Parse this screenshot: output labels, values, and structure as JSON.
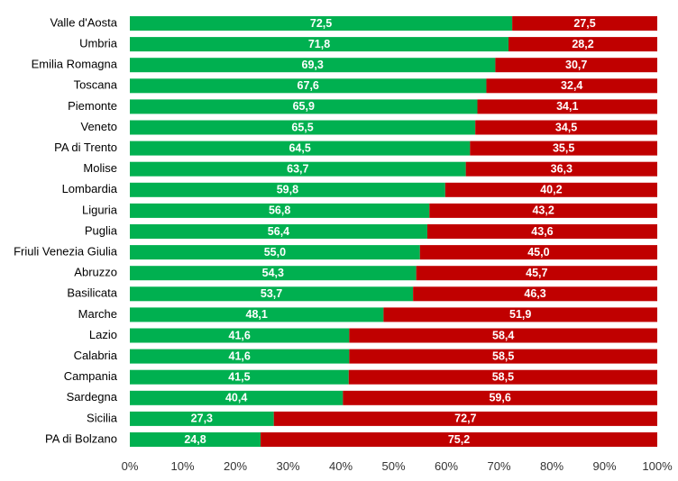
{
  "chart_data": {
    "type": "bar",
    "orientation": "horizontal",
    "stacked": true,
    "normalized_percent": true,
    "categories": [
      "Valle d'Aosta",
      "Umbria",
      "Emilia Romagna",
      "Toscana",
      "Piemonte",
      "Veneto",
      "PA di Trento",
      "Molise",
      "Lombardia",
      "Liguria",
      "Puglia",
      "Friuli Venezia Giulia",
      "Abruzzo",
      "Basilicata",
      "Marche",
      "Lazio",
      "Calabria",
      "Campania",
      "Sardegna",
      "Sicilia",
      "PA di Bolzano"
    ],
    "series": [
      {
        "color": "#00b050",
        "values": [
          72.5,
          71.8,
          69.3,
          67.6,
          65.9,
          65.5,
          64.5,
          63.7,
          59.8,
          56.8,
          56.4,
          55.0,
          54.3,
          53.7,
          48.1,
          41.6,
          41.6,
          41.5,
          40.4,
          27.3,
          24.8
        ],
        "labels": [
          "72,5",
          "71,8",
          "69,3",
          "67,6",
          "65,9",
          "65,5",
          "64,5",
          "63,7",
          "59,8",
          "56,8",
          "56,4",
          "55,0",
          "54,3",
          "53,7",
          "48,1",
          "41,6",
          "41,6",
          "41,5",
          "40,4",
          "27,3",
          "24,8"
        ]
      },
      {
        "color": "#c00000",
        "values": [
          27.5,
          28.2,
          30.7,
          32.4,
          34.1,
          34.5,
          35.5,
          36.3,
          40.2,
          43.2,
          43.6,
          45.0,
          45.7,
          46.3,
          51.9,
          58.4,
          58.5,
          58.5,
          59.6,
          72.7,
          75.2
        ],
        "labels": [
          "27,5",
          "28,2",
          "30,7",
          "32,4",
          "34,1",
          "34,5",
          "35,5",
          "36,3",
          "40,2",
          "43,2",
          "43,6",
          "45,0",
          "45,7",
          "46,3",
          "51,9",
          "58,4",
          "58,5",
          "58,5",
          "59,6",
          "72,7",
          "75,2"
        ]
      }
    ],
    "x_ticks": [
      "0%",
      "10%",
      "20%",
      "30%",
      "40%",
      "50%",
      "60%",
      "70%",
      "80%",
      "90%",
      "100%"
    ],
    "xlim": [
      0,
      100
    ],
    "grid": false,
    "legend": "none"
  }
}
